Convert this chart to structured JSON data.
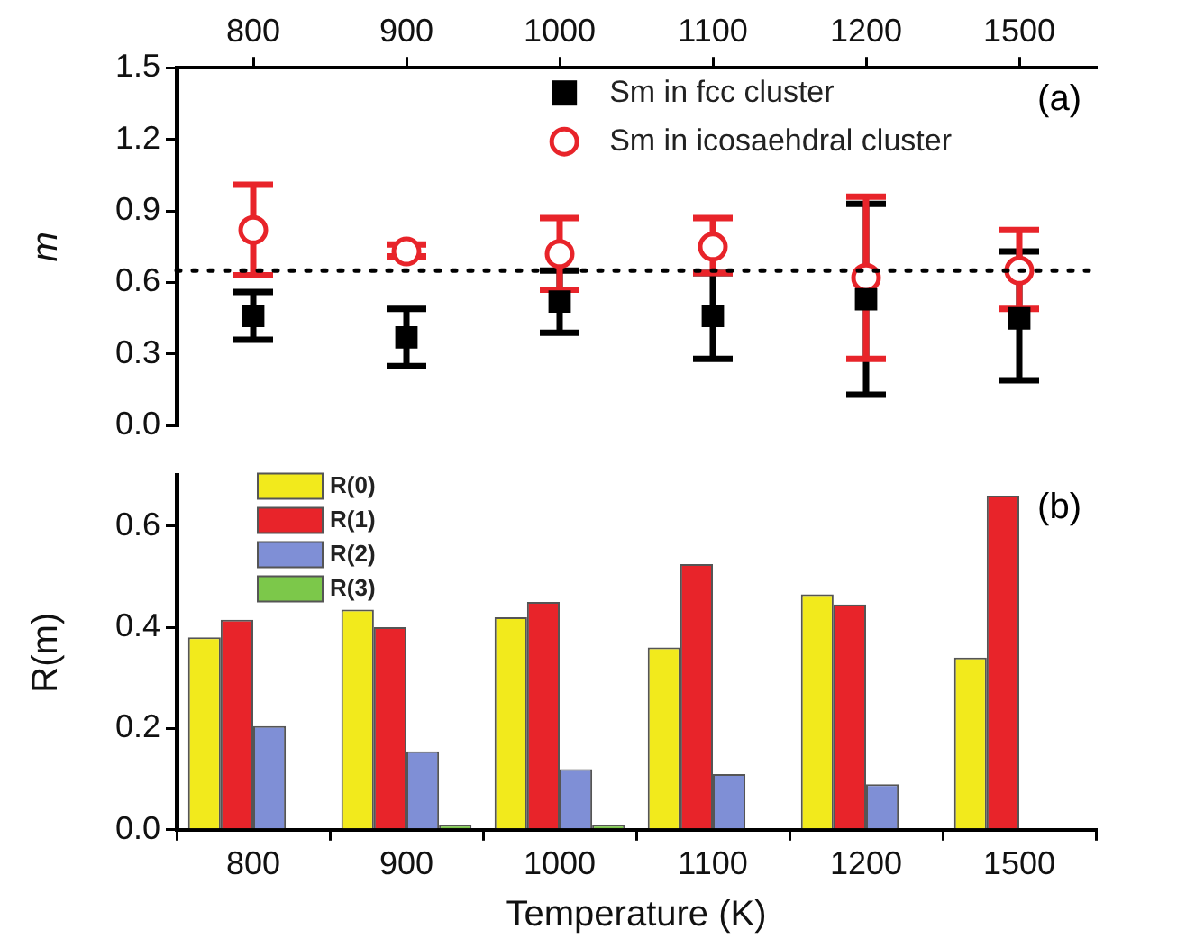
{
  "chart_data": [
    {
      "type": "scatter",
      "ylabel": "m",
      "categories": [
        "800",
        "900",
        "1000",
        "1100",
        "1200",
        "1500"
      ],
      "ylim": [
        0,
        1.5
      ],
      "yticks": [
        {
          "value": 0,
          "label": "0.0"
        },
        {
          "value": 0.3,
          "label": "0.3"
        },
        {
          "value": 0.6,
          "label": "0.6"
        },
        {
          "value": 0.9,
          "label": "0.9"
        },
        {
          "value": 1.2,
          "label": "1.2"
        },
        {
          "value": 1.5,
          "label": "1.5"
        }
      ],
      "series": [
        {
          "name": "Sm in fcc cluster",
          "color": "#000000",
          "marker": "square",
          "values": [
            0.46,
            0.37,
            0.52,
            0.46,
            0.53,
            0.45
          ],
          "errors": [
            [
              0.36,
              0.56
            ],
            [
              0.25,
              0.49
            ],
            [
              0.39,
              0.65
            ],
            [
              0.28,
              0.64
            ],
            [
              0.13,
              0.93
            ],
            [
              0.19,
              0.73
            ]
          ]
        },
        {
          "name": "Sm in icosaehdral cluster",
          "color": "#e8242a",
          "marker": "circle",
          "values": [
            0.82,
            0.73,
            0.72,
            0.75,
            0.62,
            0.65
          ],
          "errors": [
            [
              0.63,
              1.01
            ],
            [
              0.71,
              0.76
            ],
            [
              0.57,
              0.87
            ],
            [
              0.64,
              0.87
            ],
            [
              0.28,
              0.96
            ],
            [
              0.49,
              0.82
            ]
          ]
        }
      ],
      "ref_lines": [
        {
          "axis": "y",
          "value": 0.65,
          "label": null,
          "line_style": "dotted",
          "color": "#000000"
        }
      ],
      "annotations": [
        "(a)"
      ],
      "legend": "top right",
      "grid": false
    },
    {
      "type": "bar",
      "xlabel": "Temperature (K)",
      "ylabel": "R(m)",
      "categories": [
        "800",
        "900",
        "1000",
        "1100",
        "1200",
        "1500"
      ],
      "ylim": [
        0,
        0.7
      ],
      "yticks": [
        {
          "value": 0,
          "label": "0.0"
        },
        {
          "value": 0.2,
          "label": "0.2"
        },
        {
          "value": 0.4,
          "label": "0.4"
        },
        {
          "value": 0.6,
          "label": "0.6"
        }
      ],
      "series": [
        {
          "name": "R(0)",
          "color": "#f2ea1c",
          "values": [
            0.38,
            0.435,
            0.42,
            0.36,
            0.465,
            0.34
          ]
        },
        {
          "name": "R(1)",
          "color": "#e8242a",
          "values": [
            0.415,
            0.4,
            0.45,
            0.525,
            0.445,
            0.66
          ]
        },
        {
          "name": "R(2)",
          "color": "#7f8fd6",
          "values": [
            0.205,
            0.155,
            0.12,
            0.11,
            0.09,
            null
          ]
        },
        {
          "name": "R(3)",
          "color": "#7cc84a",
          "values": [
            null,
            0.01,
            0.01,
            null,
            null,
            null
          ]
        }
      ],
      "annotations": [
        "(b)"
      ],
      "legend": "top left",
      "grid": false
    }
  ]
}
